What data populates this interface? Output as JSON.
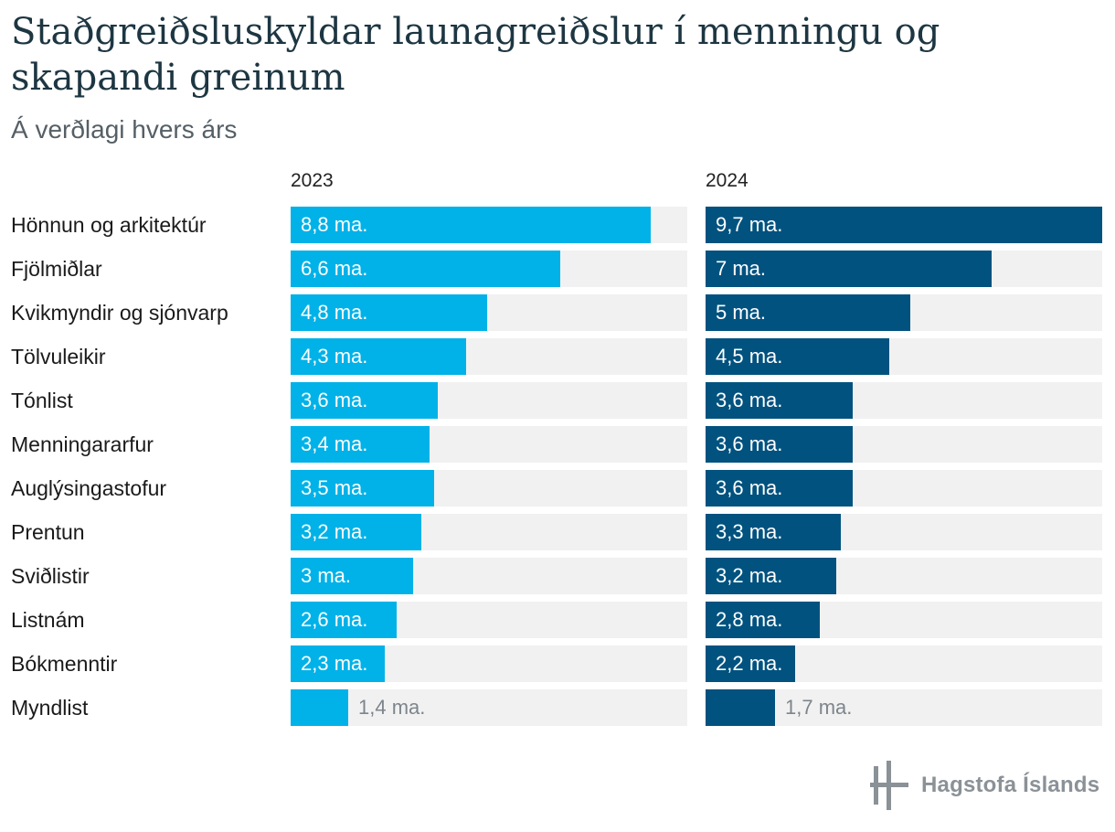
{
  "chart_data": {
    "type": "bar",
    "title": "Staðgreiðsluskyldar launagreiðslur í menningu og skapandi greinum",
    "subtitle": "Á verðlagi hvers árs",
    "unit": "ma.",
    "xlim": [
      0,
      9.7
    ],
    "categories": [
      "Hönnun og arkitektúr",
      "Fjölmiðlar",
      "Kvikmyndir og sjónvarp",
      "Tölvuleikir",
      "Tónlist",
      "Menningararfur",
      "Auglýsingastofur",
      "Prentun",
      "Sviðlistir",
      "Listnám",
      "Bókmenntir",
      "Myndlist"
    ],
    "series": [
      {
        "name": "2023",
        "color": "#00b2e8",
        "values": [
          8.8,
          6.6,
          4.8,
          4.3,
          3.6,
          3.4,
          3.5,
          3.2,
          3.0,
          2.6,
          2.3,
          1.4
        ],
        "labels": [
          "8,8 ma.",
          "6,6 ma.",
          "4,8 ma.",
          "4,3 ma.",
          "3,6 ma.",
          "3,4 ma.",
          "3,5 ma.",
          "3,2 ma.",
          "3 ma.",
          "2,6 ma.",
          "2,3 ma.",
          "1,4 ma."
        ]
      },
      {
        "name": "2024",
        "color": "#01527f",
        "values": [
          9.7,
          7.0,
          5.0,
          4.5,
          3.6,
          3.6,
          3.6,
          3.3,
          3.2,
          2.8,
          2.2,
          1.7
        ],
        "labels": [
          "9,7 ma.",
          "7 ma.",
          "5 ma.",
          "4,5 ma.",
          "3,6 ma.",
          "3,6 ma.",
          "3,6 ma.",
          "3,3 ma.",
          "3,2 ma.",
          "2,8 ma.",
          "2,2 ma.",
          "1,7 ma."
        ]
      }
    ]
  },
  "logo": {
    "text": "Hagstofa Íslands"
  }
}
